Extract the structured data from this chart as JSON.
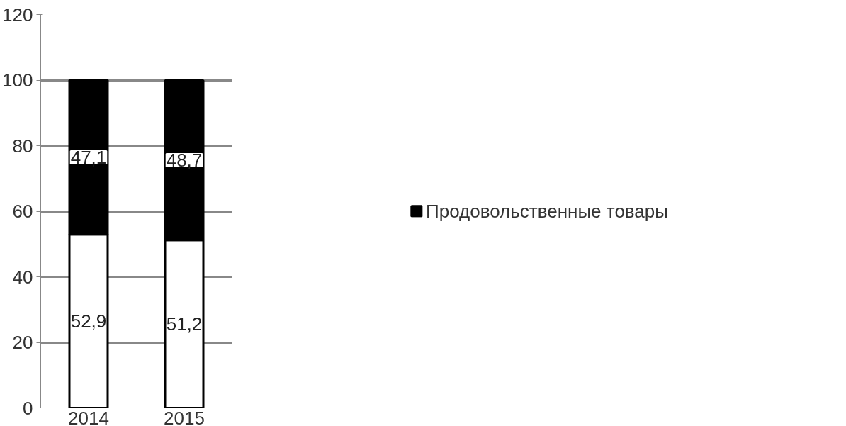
{
  "chart_data": {
    "type": "bar",
    "stacked": true,
    "categories": [
      "2014",
      "2015"
    ],
    "series": [
      {
        "color": "#ffffff",
        "values": [
          52.9,
          51.2
        ],
        "value_labels": [
          "52,9",
          "51,2"
        ]
      },
      {
        "name": "Продовольственные товары",
        "color": "#000000",
        "values": [
          47.1,
          48.7
        ],
        "value_labels": [
          "47,1",
          "48,7"
        ]
      }
    ],
    "ylim": [
      0,
      120
    ],
    "yticks": [
      0,
      20,
      40,
      60,
      80,
      100,
      120
    ],
    "grid": "y",
    "legend": "right"
  }
}
